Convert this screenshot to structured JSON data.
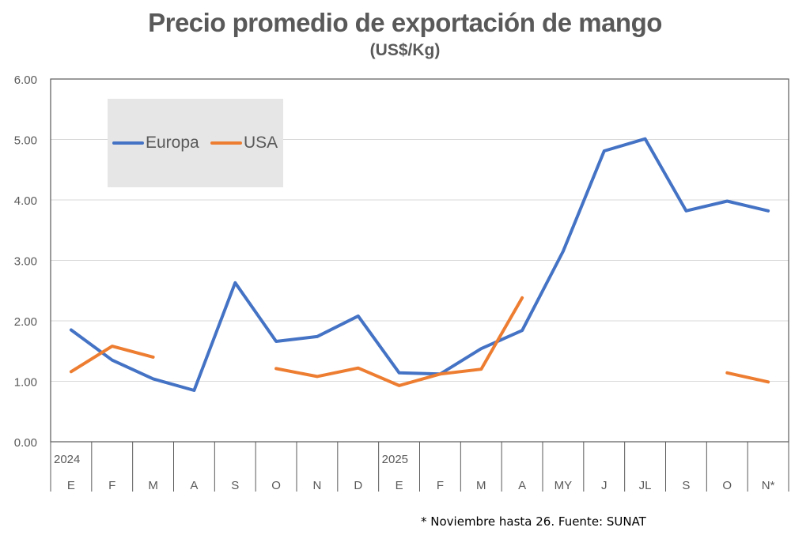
{
  "chart_data": {
    "type": "line",
    "title": "Precio promedio de exportación de mango",
    "subtitle": "(US$/Kg)",
    "xlabel": "",
    "ylabel": "",
    "ylim": [
      0,
      6
    ],
    "yticks": [
      "0.00",
      "1.00",
      "2.00",
      "3.00",
      "4.00",
      "5.00",
      "6.00"
    ],
    "ytick_values": [
      0,
      1,
      2,
      3,
      4,
      5,
      6
    ],
    "grid": true,
    "legend_position": "top-left",
    "year_labels": [
      {
        "index": 0,
        "label": "2024"
      },
      {
        "index": 8,
        "label": "2025"
      }
    ],
    "categories": [
      "E",
      "F",
      "M",
      "A",
      "S",
      "O",
      "N",
      "D",
      "E",
      "F",
      "M",
      "A",
      "MY",
      "J",
      "JL",
      "S",
      "O",
      "N*"
    ],
    "series": [
      {
        "name": "Europa",
        "color": "#4472c4",
        "values": [
          1.85,
          1.35,
          1.04,
          0.85,
          2.63,
          1.66,
          1.74,
          2.08,
          1.14,
          1.12,
          1.54,
          1.84,
          3.15,
          4.81,
          5.01,
          3.82,
          3.98,
          3.82
        ]
      },
      {
        "name": "USA",
        "color": "#ed7d31",
        "values": [
          1.16,
          1.58,
          1.4,
          null,
          null,
          1.21,
          1.08,
          1.22,
          0.93,
          1.12,
          1.2,
          2.38,
          null,
          null,
          null,
          null,
          1.14,
          0.99
        ]
      }
    ],
    "footnote": "* Noviembre hasta 26. Fuente: SUNAT"
  }
}
